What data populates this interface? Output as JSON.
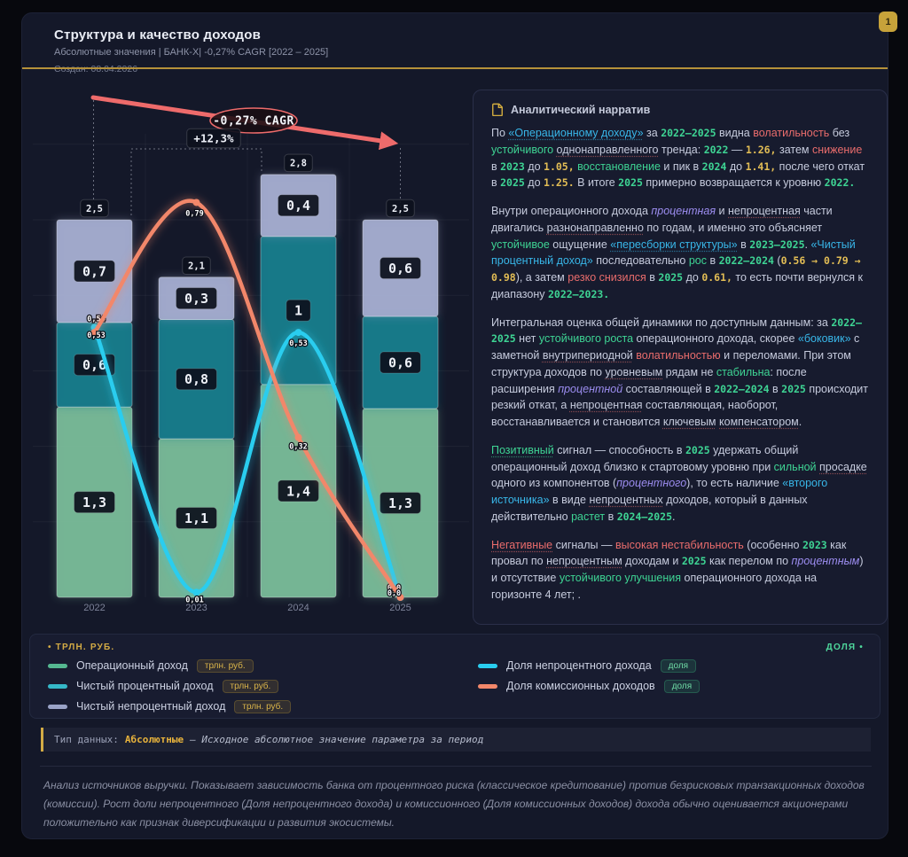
{
  "page_badge": "1",
  "header": {
    "title": "Структура и качество доходов",
    "subtitle": "Абсолютные значения | БАНК-X| -0,27% CAGR [2022 – 2025]",
    "created": "Создан: 08.04.2026"
  },
  "narrative": {
    "header": "Аналитический нарратив",
    "paragraphs": [
      [
        {
          "t": "По ",
          "s": ""
        },
        {
          "t": "«Операционному доходу»",
          "s": "cu"
        },
        {
          "t": " за ",
          "s": ""
        },
        {
          "t": "2022–2025",
          "s": "m"
        },
        {
          "t": " видна ",
          "s": ""
        },
        {
          "t": "волатильность",
          "s": "r"
        },
        {
          "t": " без ",
          "s": ""
        },
        {
          "t": "устойчивого",
          "s": "g"
        },
        {
          "t": " ",
          "s": ""
        },
        {
          "t": "однонаправленного",
          "s": "u"
        },
        {
          "t": " тренда: ",
          "s": ""
        },
        {
          "t": "2022",
          "s": "m"
        },
        {
          "t": " — ",
          "s": ""
        },
        {
          "t": "1.26,",
          "s": "y"
        },
        {
          "t": " затем ",
          "s": ""
        },
        {
          "t": "снижение",
          "s": "r"
        },
        {
          "t": " в ",
          "s": ""
        },
        {
          "t": "2023",
          "s": "m"
        },
        {
          "t": " до ",
          "s": ""
        },
        {
          "t": "1.05,",
          "s": "y"
        },
        {
          "t": " ",
          "s": ""
        },
        {
          "t": "восстановление",
          "s": "g"
        },
        {
          "t": " и пик в ",
          "s": ""
        },
        {
          "t": "2024",
          "s": "m"
        },
        {
          "t": " до ",
          "s": ""
        },
        {
          "t": "1.41,",
          "s": "y"
        },
        {
          "t": " после чего откат в ",
          "s": ""
        },
        {
          "t": "2025",
          "s": "m"
        },
        {
          "t": " до ",
          "s": ""
        },
        {
          "t": "1.25.",
          "s": "y"
        },
        {
          "t": " В итоге ",
          "s": ""
        },
        {
          "t": "2025",
          "s": "m"
        },
        {
          "t": " примерно возвращается к уровню ",
          "s": ""
        },
        {
          "t": "2022.",
          "s": "m"
        }
      ],
      [
        {
          "t": "Внутри операционного дохода ",
          "s": ""
        },
        {
          "t": "процентная",
          "s": "p"
        },
        {
          "t": " и ",
          "s": ""
        },
        {
          "t": "непроцентная",
          "s": "u"
        },
        {
          "t": " части двигались ",
          "s": ""
        },
        {
          "t": "разнонаправленно",
          "s": "u"
        },
        {
          "t": " по годам, и именно это объясняет ",
          "s": ""
        },
        {
          "t": "устойчивое",
          "s": "g"
        },
        {
          "t": " ощущение ",
          "s": ""
        },
        {
          "t": "«пересборки структуры»",
          "s": "cu"
        },
        {
          "t": " в ",
          "s": ""
        },
        {
          "t": "2023–2025",
          "s": "m"
        },
        {
          "t": ". ",
          "s": ""
        },
        {
          "t": "«Чистый процентный доход»",
          "s": "c"
        },
        {
          "t": " последовательно ",
          "s": ""
        },
        {
          "t": "рос",
          "s": "g"
        },
        {
          "t": " в ",
          "s": ""
        },
        {
          "t": "2022–2024",
          "s": "m"
        },
        {
          "t": " (",
          "s": ""
        },
        {
          "t": "0.56 → 0.79 → 0.98",
          "s": "y"
        },
        {
          "t": "), а затем ",
          "s": ""
        },
        {
          "t": "резко снизился",
          "s": "r"
        },
        {
          "t": " в ",
          "s": ""
        },
        {
          "t": "2025",
          "s": "m"
        },
        {
          "t": " до ",
          "s": ""
        },
        {
          "t": "0.61,",
          "s": "y"
        },
        {
          "t": " то есть почти вернулся к диапазону ",
          "s": ""
        },
        {
          "t": "2022–2023.",
          "s": "m"
        }
      ],
      [
        {
          "t": "Интегральная оценка общей динамики по доступным данным: за ",
          "s": ""
        },
        {
          "t": "2022–2025",
          "s": "m"
        },
        {
          "t": " нет ",
          "s": ""
        },
        {
          "t": "устойчивого роста",
          "s": "g"
        },
        {
          "t": " операционного дохода, скорее ",
          "s": ""
        },
        {
          "t": "«боковик»",
          "s": "c"
        },
        {
          "t": " с заметной ",
          "s": ""
        },
        {
          "t": "внутрипериодной",
          "s": "u"
        },
        {
          "t": " ",
          "s": ""
        },
        {
          "t": "волатильностью",
          "s": "r"
        },
        {
          "t": " и переломами. При этом структура доходов по ",
          "s": ""
        },
        {
          "t": "уровневым",
          "s": "u"
        },
        {
          "t": " рядам не ",
          "s": ""
        },
        {
          "t": "стабильна",
          "s": "g"
        },
        {
          "t": ": после расширения ",
          "s": ""
        },
        {
          "t": "процентной",
          "s": "p"
        },
        {
          "t": " составляющей в ",
          "s": ""
        },
        {
          "t": "2022–2024",
          "s": "m"
        },
        {
          "t": " в ",
          "s": ""
        },
        {
          "t": "2025",
          "s": "m"
        },
        {
          "t": " происходит резкий откат, а ",
          "s": ""
        },
        {
          "t": "непроцентная",
          "s": "u"
        },
        {
          "t": " составляющая, наоборот, восстанавливается и становится ",
          "s": ""
        },
        {
          "t": "ключевым",
          "s": "u"
        },
        {
          "t": " ",
          "s": ""
        },
        {
          "t": "компенсатором",
          "s": "u"
        },
        {
          "t": ".",
          "s": ""
        }
      ],
      [
        {
          "t": "Позитивный",
          "s": "gu"
        },
        {
          "t": " сигнал — способность в ",
          "s": ""
        },
        {
          "t": "2025",
          "s": "m"
        },
        {
          "t": " удержать общий операционный доход близко к стартовому уровню при ",
          "s": ""
        },
        {
          "t": "сильной",
          "s": "g"
        },
        {
          "t": " ",
          "s": ""
        },
        {
          "t": "просадке",
          "s": "u"
        },
        {
          "t": " одного из компонентов (",
          "s": ""
        },
        {
          "t": "процентного",
          "s": "p"
        },
        {
          "t": "), то есть наличие ",
          "s": ""
        },
        {
          "t": "«второго источника»",
          "s": "c"
        },
        {
          "t": " в виде ",
          "s": ""
        },
        {
          "t": "непроцентных",
          "s": "u"
        },
        {
          "t": " доходов, который в данных действительно ",
          "s": ""
        },
        {
          "t": "растет",
          "s": "g"
        },
        {
          "t": " в ",
          "s": ""
        },
        {
          "t": "2024–2025",
          "s": "m"
        },
        {
          "t": ".",
          "s": ""
        }
      ],
      [
        {
          "t": "Негативные",
          "s": "ru"
        },
        {
          "t": " сигналы — ",
          "s": ""
        },
        {
          "t": "высокая нестабильность",
          "s": "r"
        },
        {
          "t": " (особенно ",
          "s": ""
        },
        {
          "t": "2023",
          "s": "m"
        },
        {
          "t": " как провал по ",
          "s": ""
        },
        {
          "t": "непроцентным",
          "s": "u"
        },
        {
          "t": " доходам и ",
          "s": ""
        },
        {
          "t": "2025",
          "s": "m"
        },
        {
          "t": " как перелом по ",
          "s": ""
        },
        {
          "t": "процентным",
          "s": "p"
        },
        {
          "t": ") и отсутствие ",
          "s": ""
        },
        {
          "t": "устойчивого улучшения",
          "s": "g"
        },
        {
          "t": " операционного дохода на горизонте 4 лет; .",
          "s": ""
        }
      ]
    ]
  },
  "legend": {
    "left": {
      "header": "• ТРЛН. РУБ.",
      "items": [
        {
          "label": "Операционный доход",
          "badge": "трлн. руб.",
          "color": "#55b891",
          "badge_style": "gold"
        },
        {
          "label": "Чистый процентный доход",
          "badge": "трлн. руб.",
          "color": "#35b8c8",
          "badge_style": "gold"
        },
        {
          "label": "Чистый непроцентный доход",
          "badge": "трлн. руб.",
          "color": "#9aa3c7",
          "badge_style": "gold"
        }
      ]
    },
    "right": {
      "header": "ДОЛЯ •",
      "items": [
        {
          "label": "Доля непроцентного дохода",
          "badge": "доля",
          "color": "#29cdef",
          "badge_style": "green"
        },
        {
          "label": "Доля комиссионных доходов",
          "badge": "доля",
          "color": "#f2876a",
          "badge_style": "green"
        }
      ]
    }
  },
  "dtype": {
    "label": "Тип данных:",
    "value": "Абсолютные",
    "desc": "– Исходное абсолютное значение параметра за период"
  },
  "footer": "Анализ источников выручки. Показывает зависимость банка от процентного риска (классическое кредитование) против безрисковых транзакционных доходов (комиссии). Рост доли непроцентного (Доля непроцентного дохода) и комиссионного (Доля комиссионных доходов) дохода обычно оценивается акционерами положительно как признак диверсификации и развития экосистемы.",
  "chart_data": {
    "type": "combo: stacked bar (левая ось, трлн. руб.) + line (правая ось, доля)",
    "categories": [
      "2022",
      "2023",
      "2024",
      "2025"
    ],
    "bar_unit": "трлн. руб.",
    "line_unit": "доля",
    "grid": true,
    "y_left_range": [
      0,
      3.0
    ],
    "y_right_range": [
      0,
      1.0
    ],
    "bar_series": [
      {
        "name": "Операционный доход",
        "color": "#7cc09c",
        "values": [
          1.26,
          1.05,
          1.41,
          1.25
        ],
        "labels": [
          "1,3",
          "1,1",
          "1,4",
          "1,3"
        ]
      },
      {
        "name": "Чистый процентный доход",
        "color": "#17808f",
        "values": [
          0.56,
          0.79,
          0.98,
          0.61
        ],
        "labels": [
          "0,6",
          "0,8",
          "1",
          "0,6"
        ]
      },
      {
        "name": "Чистый непроцентный доход",
        "color": "#aab3d6",
        "values": [
          0.68,
          0.28,
          0.41,
          0.64
        ],
        "labels": [
          "0,7",
          "0,3",
          "0,4",
          "0,6"
        ]
      }
    ],
    "totals": {
      "values": [
        2.5,
        2.12,
        2.8,
        2.5
      ],
      "labels": [
        "2,5",
        "2,1",
        "2,8",
        "2,5"
      ]
    },
    "line_series": [
      {
        "name": "Доля непроцентного дохода",
        "color": "#29cdef",
        "values": [
          0.54,
          0.01,
          0.53,
          0.0
        ],
        "labels": [
          "0,54",
          "0,01",
          "0,53",
          "0,0"
        ]
      },
      {
        "name": "Доля комиссионных доходов",
        "color": "#f2876a",
        "values": [
          0.53,
          0.79,
          0.32,
          0.0
        ],
        "labels": [
          "0,53",
          "0,79",
          "0,32",
          "0,0"
        ]
      }
    ],
    "annotations": {
      "cagr": "-0,27% CAGR",
      "growth": "+12,3%"
    }
  }
}
